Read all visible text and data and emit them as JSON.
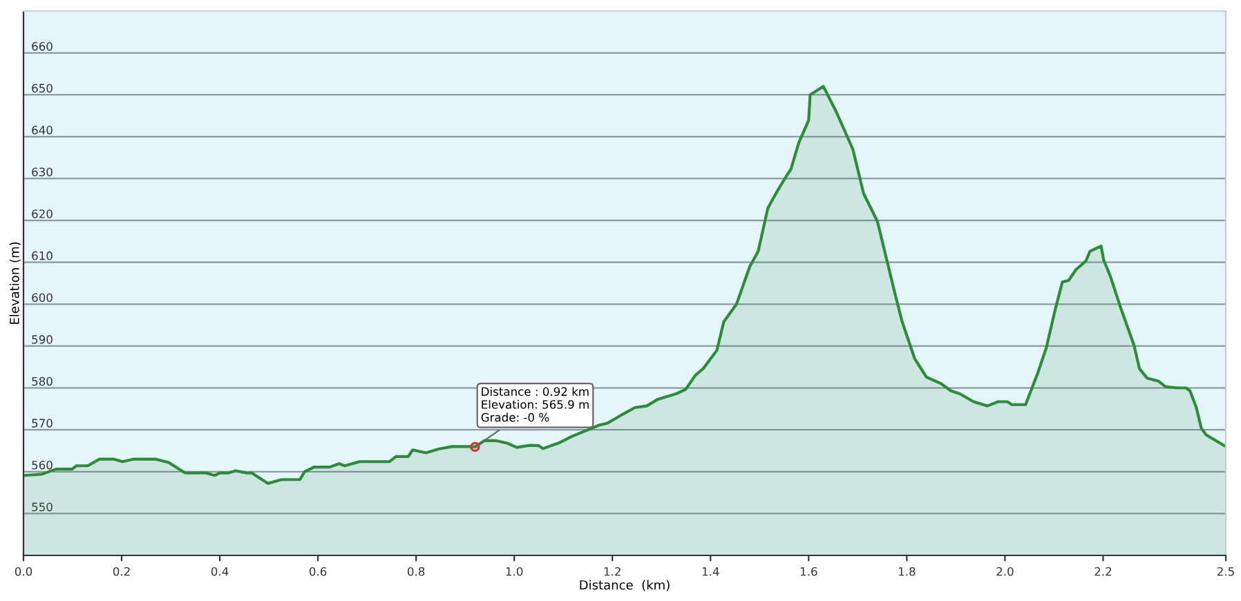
{
  "chart_data": {
    "type": "area",
    "xlabel": "Distance  (km)",
    "ylabel": "Elevation (m)",
    "xlim": [
      0,
      2.45
    ],
    "ylim": [
      540,
      670
    ],
    "xticks": [
      {
        "value": 0,
        "label": "0.0"
      },
      0.2,
      0.4,
      0.6,
      0.8,
      {
        "value": 1,
        "label": "1.0"
      },
      1.2,
      1.4,
      1.6,
      1.8,
      {
        "value": 2,
        "label": "2.0"
      },
      2.2,
      {
        "value": 2.45,
        "label": "2.5"
      }
    ],
    "yticks": [
      550,
      560,
      570,
      580,
      590,
      600,
      610,
      620,
      630,
      640,
      650,
      660
    ],
    "grid": "y",
    "legend": false,
    "series": [
      {
        "color": "#2e8b3a",
        "x": [
          0,
          0.038,
          0.066,
          0.099,
          0.108,
          0.131,
          0.155,
          0.183,
          0.202,
          0.225,
          0.268,
          0.296,
          0.329,
          0.371,
          0.39,
          0.4,
          0.418,
          0.432,
          0.455,
          0.465,
          0.498,
          0.526,
          0.563,
          0.573,
          0.592,
          0.624,
          0.643,
          0.655,
          0.685,
          0.746,
          0.759,
          0.784,
          0.793,
          0.82,
          0.846,
          0.874,
          0.91,
          0.92,
          0.939,
          0.963,
          0.986,
          1.005,
          1.033,
          1.05,
          1.059,
          1.07,
          1.09,
          1.117,
          1.173,
          1.19,
          1.218,
          1.246,
          1.27,
          1.293,
          1.33,
          1.349,
          1.369,
          1.385,
          1.413,
          1.427,
          1.453,
          1.48,
          1.497,
          1.517,
          1.536,
          1.55,
          1.564,
          1.58,
          1.6,
          1.603,
          1.63,
          1.656,
          1.69,
          1.712,
          1.74,
          1.777,
          1.79,
          1.816,
          1.84,
          1.87,
          1.89,
          1.908,
          1.936,
          1.964,
          1.986,
          2.005,
          2.014,
          2.042,
          2.067,
          2.084,
          2.103,
          2.117,
          2.13,
          2.145,
          2.165,
          2.173,
          2.196,
          2.201,
          2.215,
          2.235,
          2.263,
          2.274,
          2.29,
          2.313,
          2.327,
          2.35,
          2.369,
          2.377,
          2.39,
          2.4,
          2.41,
          2.43,
          2.45
        ],
        "values": [
          559.1,
          559.4,
          560.6,
          560.6,
          561.4,
          561.4,
          563,
          563,
          562.4,
          563,
          563,
          562.2,
          559.7,
          559.7,
          559.1,
          559.7,
          559.7,
          560.2,
          559.7,
          559.7,
          557.2,
          558.1,
          558.1,
          560,
          561.1,
          561.1,
          561.9,
          561.4,
          562.4,
          562.4,
          563.6,
          563.6,
          565.2,
          564.5,
          565.4,
          566,
          566,
          565.9,
          567.4,
          567.4,
          566.8,
          565.8,
          566.3,
          566.2,
          565.5,
          566,
          566.8,
          568.4,
          571.1,
          571.6,
          573.5,
          575.3,
          575.7,
          577.3,
          578.6,
          579.6,
          583,
          584.6,
          589,
          595.8,
          600,
          609,
          612.6,
          623,
          627,
          629.7,
          632.3,
          638.6,
          643.9,
          650,
          652,
          646,
          637,
          626.4,
          619.8,
          602,
          596,
          587,
          582.6,
          581,
          579.3,
          578.6,
          576.7,
          575.7,
          576.7,
          576.7,
          576,
          576,
          583.6,
          589.5,
          599,
          605.3,
          605.7,
          608.3,
          610.3,
          612.6,
          613.9,
          610.6,
          606.6,
          599.4,
          590.2,
          584.6,
          582.3,
          581.6,
          580.3,
          580,
          580,
          579.3,
          575.3,
          570.4,
          568.8,
          567.4,
          566
        ]
      }
    ],
    "annotations": [
      {
        "text": "Distance : 0.92 km\nElevation: 565.9 m\nGrade: -0 %",
        "x": 0.92,
        "y": 565.9
      }
    ]
  }
}
